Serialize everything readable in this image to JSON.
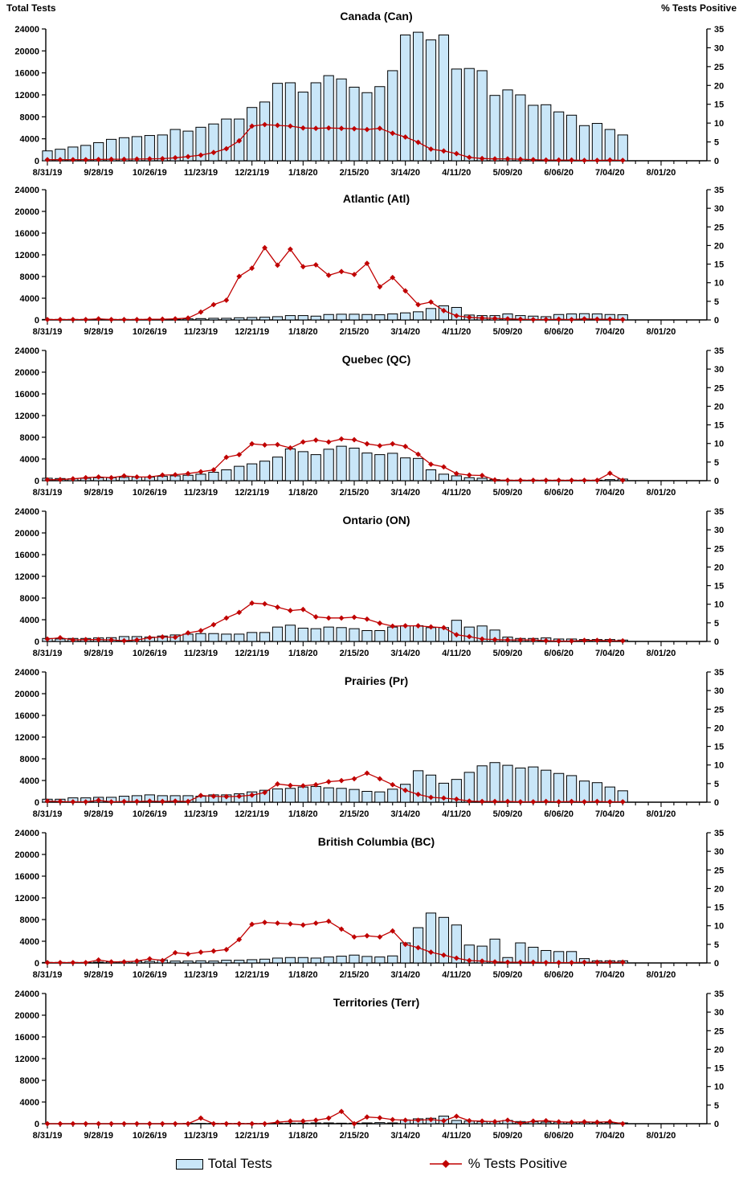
{
  "axes": {
    "left_label": "Total Tests",
    "right_label": "% Tests Positive",
    "left_min": 0,
    "left_max": 24000,
    "left_step": 4000,
    "left_tick_labels": [
      "0",
      "4000",
      "8000",
      "12000",
      "16000",
      "20000",
      "24000"
    ],
    "right_min": 0,
    "right_max": 35,
    "right_step": 5,
    "right_tick_labels": [
      "0",
      "5",
      "10",
      "15",
      "20",
      "25",
      "30",
      "35"
    ]
  },
  "x_axis": {
    "start_date": "8/31/19",
    "interval": "weekly",
    "tick_labels": [
      "8/31/19",
      "9/28/19",
      "10/26/19",
      "11/23/19",
      "12/21/19",
      "1/18/20",
      "2/15/20",
      "3/14/20",
      "4/11/20",
      "5/09/20",
      "6/06/20",
      "7/04/20",
      "8/01/20"
    ],
    "weeks_per_labeled_tick": 4,
    "minor_tick_weeks": 52
  },
  "legend": {
    "bar_label": "Total Tests",
    "line_label": "% Tests Positive"
  },
  "colors": {
    "bar_fill": "#C9E6F8",
    "bar_border": "#000000",
    "line": "#C00000",
    "text": "#000000",
    "axis": "#000000"
  },
  "chart_data": [
    {
      "type": "bar",
      "title": "Canada (Can)",
      "x_start": "8/31/19",
      "x_interval": "weekly",
      "xlabel": "",
      "ylabel_left": "Total Tests",
      "ylabel_right": "% Tests Positive",
      "ylim_left": [
        0,
        24000
      ],
      "ylim_right": [
        0,
        35
      ],
      "series": [
        {
          "name": "Total Tests",
          "type": "bar",
          "axis": "left",
          "values": [
            1800,
            2100,
            2500,
            2800,
            3300,
            3900,
            4200,
            4400,
            4600,
            4700,
            5700,
            5400,
            6100,
            6700,
            7600,
            7600,
            9700,
            10700,
            14100,
            14200,
            12500,
            14200,
            15500,
            14900,
            13400,
            12400,
            13500,
            16400,
            22900,
            23400,
            22000,
            22900,
            16700,
            16800,
            16400,
            11900,
            12900,
            12000,
            10100,
            10200,
            8900,
            8300,
            6400,
            6800,
            5700,
            4700
          ]
        },
        {
          "name": "% Tests Positive",
          "type": "line",
          "axis": "right",
          "values": [
            0.3,
            0.3,
            0.3,
            0.3,
            0.35,
            0.4,
            0.4,
            0.45,
            0.5,
            0.55,
            0.8,
            1.1,
            1.5,
            2.2,
            3.2,
            5.3,
            9.2,
            9.6,
            9.4,
            9.2,
            8.7,
            8.6,
            8.7,
            8.6,
            8.5,
            8.3,
            8.6,
            7.3,
            6.3,
            4.9,
            3.1,
            2.6,
            1.9,
            0.9,
            0.6,
            0.5,
            0.5,
            0.4,
            0.3,
            0.2,
            0.2,
            0.2,
            0.1,
            0.1,
            0.2,
            0.1
          ]
        }
      ]
    },
    {
      "type": "bar",
      "title": "Atlantic (Atl)",
      "x_start": "8/31/19",
      "x_interval": "weekly",
      "xlabel": "",
      "ylabel_left": "Total Tests",
      "ylabel_right": "% Tests Positive",
      "ylim_left": [
        0,
        24000
      ],
      "ylim_right": [
        0,
        35
      ],
      "series": [
        {
          "name": "Total Tests",
          "type": "bar",
          "axis": "left",
          "values": [
            100,
            100,
            100,
            100,
            100,
            100,
            100,
            100,
            100,
            100,
            150,
            200,
            250,
            300,
            300,
            400,
            450,
            500,
            600,
            800,
            800,
            700,
            1000,
            1050,
            1050,
            1000,
            950,
            1100,
            1300,
            1500,
            2100,
            2600,
            2300,
            900,
            800,
            800,
            1100,
            800,
            700,
            600,
            1000,
            1100,
            1150,
            1100,
            1000,
            950
          ]
        },
        {
          "name": "% Tests Positive",
          "type": "line",
          "axis": "right",
          "values": [
            0.1,
            0.1,
            0.1,
            0.1,
            0.3,
            0.1,
            0.1,
            0.1,
            0.2,
            0.2,
            0.3,
            0.5,
            2.1,
            4.1,
            5.3,
            11.7,
            13.9,
            19.4,
            14.7,
            19.0,
            14.3,
            14.8,
            12.0,
            13.0,
            12.2,
            15.2,
            8.9,
            11.4,
            7.8,
            4.1,
            4.8,
            2.5,
            1.1,
            0.7,
            0.5,
            0.4,
            0.3,
            0.2,
            0.1,
            0.1,
            0.2,
            0.1,
            0.3,
            0.2,
            0.2,
            0.1
          ]
        }
      ]
    },
    {
      "type": "bar",
      "title": "Quebec (QC)",
      "x_start": "8/31/19",
      "x_interval": "weekly",
      "xlabel": "",
      "ylabel_left": "Total Tests",
      "ylabel_right": "% Tests Positive",
      "ylim_left": [
        0,
        24000
      ],
      "ylim_right": [
        0,
        35
      ],
      "series": [
        {
          "name": "Total Tests",
          "type": "bar",
          "axis": "left",
          "values": [
            450,
            400,
            350,
            450,
            550,
            550,
            600,
            650,
            650,
            800,
            900,
            1000,
            1200,
            1550,
            2000,
            2650,
            3100,
            3600,
            4350,
            5850,
            5350,
            4800,
            5800,
            6350,
            6000,
            5100,
            4800,
            5050,
            4200,
            4100,
            2000,
            1200,
            900,
            550,
            450,
            200,
            100,
            100,
            100,
            100,
            100,
            100,
            100,
            100,
            200,
            300
          ]
        },
        {
          "name": "% Tests Positive",
          "type": "line",
          "axis": "right",
          "values": [
            0.25,
            0.3,
            0.5,
            0.8,
            1.0,
            0.8,
            1.3,
            1.0,
            1.0,
            1.5,
            1.6,
            1.9,
            2.4,
            2.9,
            6.3,
            7.0,
            9.9,
            9.6,
            9.7,
            8.8,
            10.4,
            10.9,
            10.4,
            11.2,
            11.0,
            9.9,
            9.4,
            9.9,
            9.2,
            7.1,
            4.4,
            3.7,
            1.9,
            1.5,
            1.4,
            0.2,
            0.1,
            0.1,
            0.1,
            0.1,
            0.1,
            0.1,
            0.1,
            0.1,
            2.0,
            0.1
          ]
        }
      ]
    },
    {
      "type": "bar",
      "title": "Ontario (ON)",
      "x_start": "8/31/19",
      "x_interval": "weekly",
      "xlabel": "",
      "ylabel_left": "Total Tests",
      "ylabel_right": "% Tests Positive",
      "ylim_left": [
        0,
        24000
      ],
      "ylim_right": [
        0,
        35
      ],
      "series": [
        {
          "name": "Total Tests",
          "type": "bar",
          "axis": "left",
          "values": [
            550,
            450,
            550,
            550,
            650,
            700,
            900,
            900,
            800,
            1000,
            1200,
            1350,
            1450,
            1450,
            1350,
            1350,
            1650,
            1650,
            2650,
            3000,
            2450,
            2350,
            2650,
            2550,
            2350,
            2000,
            2000,
            2650,
            2900,
            2900,
            2550,
            2550,
            3900,
            2650,
            2850,
            2100,
            800,
            550,
            550,
            650,
            450,
            450,
            350,
            350,
            350,
            250
          ]
        },
        {
          "name": "% Tests Positive",
          "type": "line",
          "axis": "right",
          "values": [
            0.65,
            1.0,
            0.4,
            0.5,
            0.5,
            0.4,
            0.2,
            0.4,
            1.0,
            1.2,
            1.1,
            2.3,
            2.9,
            4.5,
            6.3,
            7.8,
            10.3,
            10.1,
            9.2,
            8.3,
            8.6,
            6.6,
            6.3,
            6.3,
            6.5,
            6.0,
            4.9,
            4.1,
            4.2,
            4.2,
            3.9,
            3.7,
            1.8,
            1.3,
            0.65,
            0.5,
            0.4,
            0.4,
            0.4,
            0.2,
            0.1,
            0.1,
            0.3,
            0.3,
            0.2,
            0.15
          ]
        }
      ]
    },
    {
      "type": "bar",
      "title": "Prairies (Pr)",
      "x_start": "8/31/19",
      "x_interval": "weekly",
      "xlabel": "",
      "ylabel_left": "Total Tests",
      "ylabel_right": "% Tests Positive",
      "ylim_left": [
        0,
        24000
      ],
      "ylim_right": [
        0,
        35
      ],
      "series": [
        {
          "name": "Total Tests",
          "type": "bar",
          "axis": "left",
          "values": [
            550,
            550,
            800,
            800,
            900,
            900,
            1100,
            1200,
            1350,
            1200,
            1200,
            1200,
            1100,
            1350,
            1350,
            1550,
            1900,
            2200,
            2450,
            2550,
            2800,
            2900,
            2650,
            2550,
            2350,
            2000,
            1900,
            2400,
            3300,
            5800,
            5000,
            3500,
            4200,
            5500,
            6700,
            7300,
            6800,
            6300,
            6500,
            5900,
            5300,
            4900,
            3900,
            3600,
            2800,
            2100
          ]
        },
        {
          "name": "% Tests Positive",
          "type": "line",
          "axis": "right",
          "values": [
            0.3,
            0.2,
            0.1,
            0.1,
            0.5,
            0.1,
            0.2,
            0.2,
            0.3,
            0.2,
            0.3,
            0.2,
            1.8,
            1.6,
            1.5,
            1.6,
            1.9,
            2.6,
            4.9,
            4.5,
            4.4,
            4.7,
            5.5,
            5.8,
            6.3,
            7.8,
            6.3,
            4.7,
            3.2,
            2.1,
            1.3,
            1.1,
            0.8,
            0.3,
            0.2,
            0.2,
            0.2,
            0.1,
            0.1,
            0.2,
            0.1,
            0.2,
            0.1,
            0.2,
            0.1,
            0.1
          ]
        }
      ]
    },
    {
      "type": "bar",
      "title": "British Columbia (BC)",
      "x_start": "8/31/19",
      "x_interval": "weekly",
      "xlabel": "",
      "ylabel_left": "Total Tests",
      "ylabel_right": "% Tests Positive",
      "ylim_left": [
        0,
        24000
      ],
      "ylim_right": [
        0,
        35
      ],
      "series": [
        {
          "name": "Total Tests",
          "type": "bar",
          "axis": "left",
          "values": [
            100,
            100,
            100,
            100,
            150,
            200,
            250,
            300,
            300,
            550,
            350,
            350,
            400,
            350,
            500,
            500,
            600,
            700,
            900,
            1000,
            1000,
            900,
            1100,
            1250,
            1450,
            1200,
            1100,
            1300,
            3700,
            6500,
            9200,
            8400,
            7000,
            3300,
            3100,
            4400,
            1000,
            3700,
            2900,
            2300,
            2100,
            2100,
            800,
            400,
            400,
            400
          ]
        },
        {
          "name": "% Tests Positive",
          "type": "line",
          "axis": "right",
          "values": [
            0.1,
            0.1,
            0.1,
            0.1,
            0.8,
            0.3,
            0.3,
            0.5,
            1.1,
            0.65,
            2.75,
            2.4,
            2.9,
            3.2,
            3.6,
            6.3,
            10.4,
            10.9,
            10.7,
            10.5,
            10.2,
            10.7,
            11.2,
            9.1,
            7.0,
            7.3,
            7.0,
            8.6,
            5.0,
            4.1,
            2.9,
            2.1,
            1.3,
            0.65,
            0.5,
            0.3,
            0.2,
            0.2,
            0.2,
            0.1,
            0.1,
            0.1,
            0.2,
            0.2,
            0.2,
            0.2
          ]
        }
      ]
    },
    {
      "type": "bar",
      "title": "Territories (Terr)",
      "x_start": "8/31/19",
      "x_interval": "weekly",
      "xlabel": "",
      "ylabel_left": "Total Tests",
      "ylabel_right": "% Tests Positive",
      "ylim_left": [
        0,
        24000
      ],
      "ylim_right": [
        0,
        35
      ],
      "series": [
        {
          "name": "Total Tests",
          "type": "bar",
          "axis": "left",
          "values": [
            0,
            0,
            0,
            0,
            0,
            0,
            0,
            0,
            0,
            0,
            0,
            50,
            50,
            50,
            50,
            50,
            50,
            50,
            100,
            100,
            100,
            150,
            150,
            100,
            100,
            150,
            200,
            150,
            700,
            900,
            1000,
            1400,
            600,
            500,
            400,
            400,
            600,
            400,
            350,
            300,
            300,
            250,
            250,
            200,
            200,
            150
          ]
        },
        {
          "name": "% Tests Positive",
          "type": "line",
          "axis": "right",
          "values": [
            0,
            0,
            0,
            0,
            0,
            0,
            0,
            0,
            0,
            0,
            0,
            0,
            1.5,
            0,
            0,
            0,
            0,
            0,
            0.4,
            0.7,
            0.7,
            0.95,
            1.5,
            3.3,
            0,
            1.8,
            1.6,
            1.1,
            0.95,
            0.95,
            1.1,
            0.8,
            2.0,
            0.8,
            0.7,
            0.55,
            0.95,
            0.15,
            0.7,
            0.8,
            0.5,
            0.4,
            0.5,
            0.4,
            0.55,
            0
          ]
        }
      ]
    }
  ]
}
